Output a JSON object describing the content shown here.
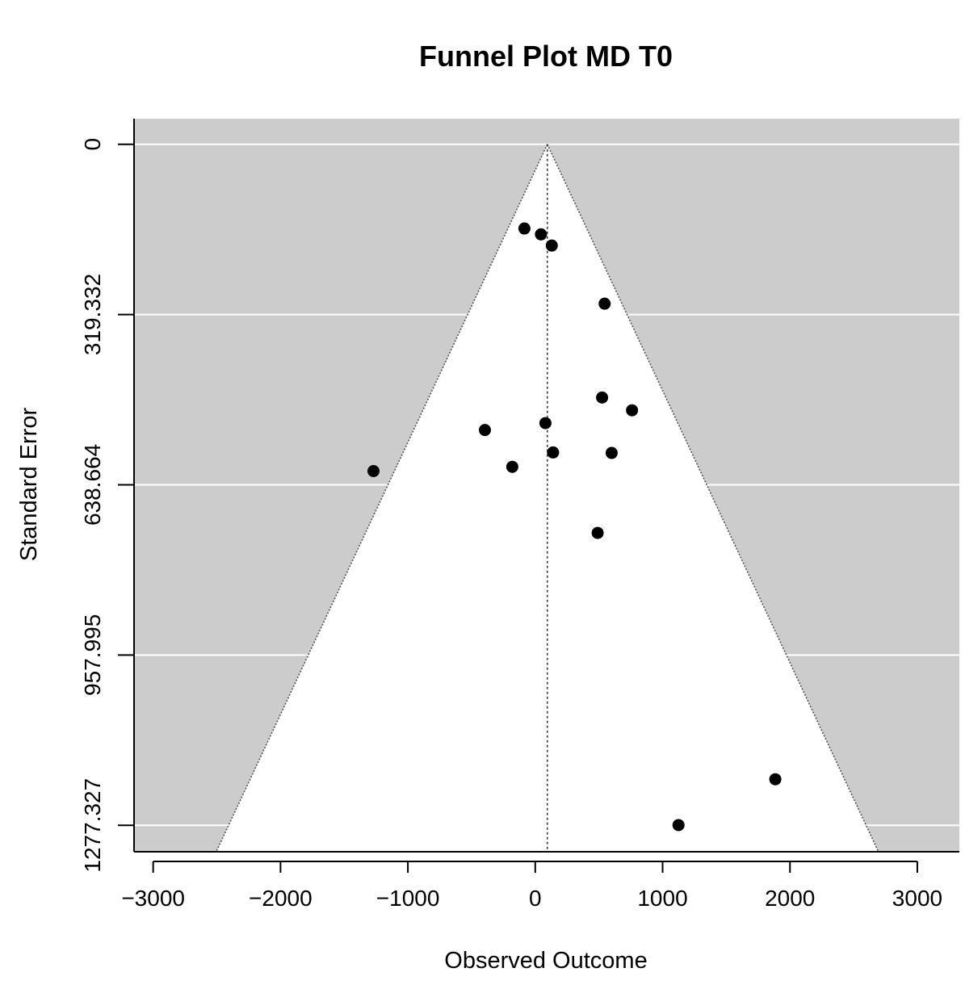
{
  "chart_data": {
    "type": "scatter",
    "title": "Funnel Plot MD T0",
    "xlabel": "Observed Outcome",
    "ylabel": "Standard Error",
    "xlim": [
      -3150,
      3330
    ],
    "ylim": [
      1327,
      -48
    ],
    "x_ticks": [
      -3000,
      -2000,
      -1000,
      0,
      1000,
      2000,
      3000
    ],
    "x_tick_labels": [
      "−3000",
      "−2000",
      "−1000",
      "0",
      "1000",
      "2000",
      "3000"
    ],
    "y_ticks": [
      0,
      319.332,
      638.664,
      957.995,
      1277.327
    ],
    "y_tick_labels": [
      "0",
      "319.332",
      "638.664",
      "957.995",
      "1277.327"
    ],
    "y_reversed": true,
    "gridlines": "horizontal, white",
    "background": "#cccccc",
    "funnel": {
      "center": 95,
      "apex_se": 0,
      "base_se": 1327,
      "base_left": -2505,
      "base_right": 2695,
      "fill": "#ffffff"
    },
    "reference_line_x": 95,
    "points": [
      {
        "x": -85,
        "y": 158
      },
      {
        "x": 45,
        "y": 169
      },
      {
        "x": 130,
        "y": 190
      },
      {
        "x": 545,
        "y": 299
      },
      {
        "x": 525,
        "y": 475
      },
      {
        "x": 760,
        "y": 499
      },
      {
        "x": 80,
        "y": 523
      },
      {
        "x": -395,
        "y": 536
      },
      {
        "x": 140,
        "y": 578
      },
      {
        "x": 600,
        "y": 579
      },
      {
        "x": -180,
        "y": 605
      },
      {
        "x": -1270,
        "y": 613
      },
      {
        "x": 490,
        "y": 729
      },
      {
        "x": 1885,
        "y": 1191
      },
      {
        "x": 1125,
        "y": 1277
      }
    ]
  }
}
